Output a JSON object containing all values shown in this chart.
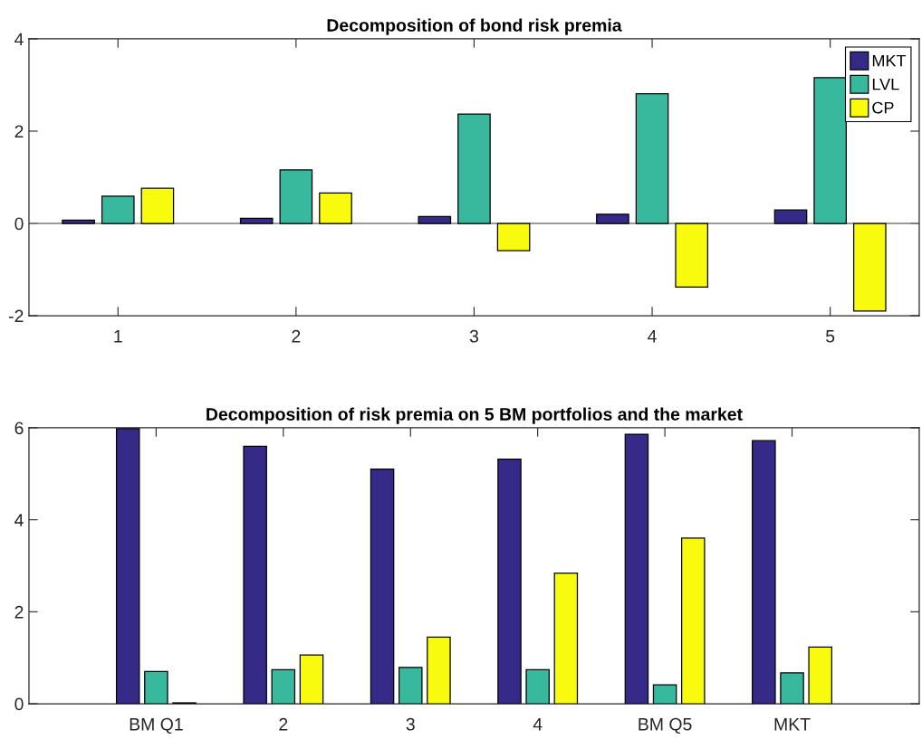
{
  "chart_data": [
    {
      "type": "bar",
      "title": "Decomposition of bond risk premia",
      "categories": [
        "1",
        "2",
        "3",
        "4",
        "5"
      ],
      "series": [
        {
          "name": "MKT",
          "color": "#352a87",
          "values": [
            0.07,
            0.11,
            0.15,
            0.2,
            0.29
          ]
        },
        {
          "name": "LVL",
          "color": "#38b99e",
          "values": [
            0.59,
            1.16,
            2.37,
            2.81,
            3.16
          ]
        },
        {
          "name": "CP",
          "color": "#f9fb0e",
          "values": [
            0.76,
            0.66,
            -0.59,
            -1.38,
            -1.9
          ]
        }
      ],
      "ylim": [
        -2,
        4
      ],
      "yticks": [
        -2,
        0,
        2,
        4
      ],
      "legend": "top right"
    },
    {
      "type": "bar",
      "title": "Decomposition of risk premia on 5 BM portfolios and the market",
      "categories": [
        "BM Q1",
        "2",
        "3",
        "4",
        "BM Q5",
        "MKT"
      ],
      "series": [
        {
          "color": "#352a87",
          "values": [
            5.98,
            5.6,
            5.1,
            5.32,
            5.86,
            5.72
          ]
        },
        {
          "color": "#38b99e",
          "values": [
            0.7,
            0.74,
            0.79,
            0.74,
            0.41,
            0.67
          ]
        },
        {
          "color": "#f9fb0e",
          "values": [
            0.02,
            1.06,
            1.45,
            2.84,
            3.6,
            1.23
          ]
        }
      ],
      "ylim": [
        0,
        6
      ],
      "yticks": [
        0,
        2,
        4,
        6
      ],
      "legend": false
    }
  ]
}
